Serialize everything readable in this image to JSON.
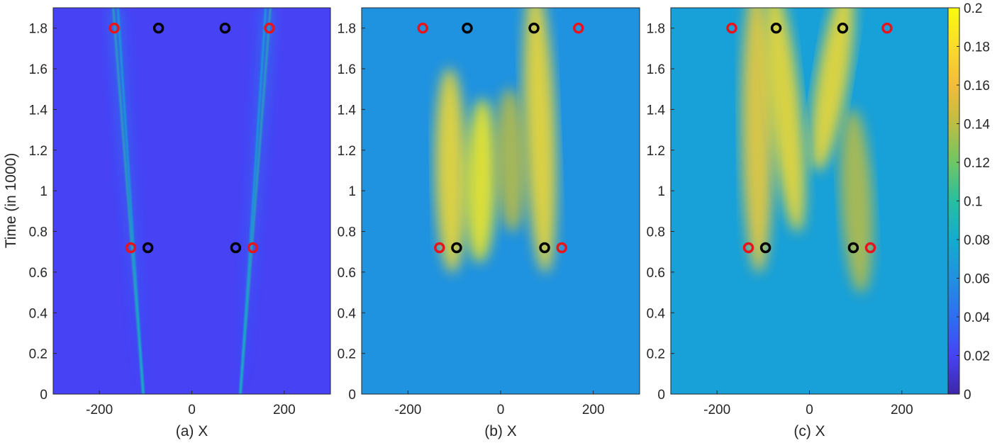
{
  "ylabel": "Time (in 1000)",
  "colorbar": {
    "range": [
      0,
      0.2
    ],
    "ticks": [
      "0",
      "0.02",
      "0.04",
      "0.06",
      "0.08",
      "0.1",
      "0.12",
      "0.14",
      "0.16",
      "0.18",
      "0.2"
    ],
    "colormap": "parula",
    "stops": [
      "#3e26a8",
      "#4743f5",
      "#2d6ff1",
      "#1f92e0",
      "#11adcf",
      "#25c0a0",
      "#6fc665",
      "#bdbd42",
      "#f4bc3a",
      "#fadb2a",
      "#f9fb0e"
    ]
  },
  "chart_data": [
    {
      "type": "heatmap",
      "panel": "a",
      "xlabel": "(a) X",
      "ylabel": "Time (in 1000)",
      "xlim": [
        -300,
        300
      ],
      "ylim": [
        0,
        1.9
      ],
      "xticks": [
        "-200",
        "0",
        "200"
      ],
      "yticks": [
        "0",
        "0.2",
        "0.4",
        "0.6",
        "0.8",
        "1",
        "1.2",
        "1.4",
        "1.6",
        "1.8"
      ],
      "background_value": 0.02,
      "features": [
        {
          "kind": "beam",
          "from": [
            -105,
            0
          ],
          "to": [
            -170,
            1.9
          ],
          "value": 0.1
        },
        {
          "kind": "beam",
          "from": [
            -105,
            0
          ],
          "to": [
            -160,
            1.9
          ],
          "value": 0.08
        },
        {
          "kind": "beam",
          "from": [
            105,
            0
          ],
          "to": [
            170,
            1.9
          ],
          "value": 0.1
        },
        {
          "kind": "beam",
          "from": [
            105,
            0
          ],
          "to": [
            160,
            1.9
          ],
          "value": 0.08
        }
      ],
      "markers": [
        {
          "x": -168,
          "y": 1.8,
          "color": "#e8141b"
        },
        {
          "x": -72,
          "y": 1.8,
          "color": "#000000"
        },
        {
          "x": 72,
          "y": 1.8,
          "color": "#000000"
        },
        {
          "x": 168,
          "y": 1.8,
          "color": "#e8141b"
        },
        {
          "x": -132,
          "y": 0.72,
          "color": "#e8141b"
        },
        {
          "x": -95,
          "y": 0.72,
          "color": "#000000"
        },
        {
          "x": 95,
          "y": 0.72,
          "color": "#000000"
        },
        {
          "x": 132,
          "y": 0.72,
          "color": "#e8141b"
        }
      ]
    },
    {
      "type": "heatmap",
      "panel": "b",
      "xlabel": "(b) X",
      "xlim": [
        -300,
        300
      ],
      "ylim": [
        0,
        1.9
      ],
      "xticks": [
        "-200",
        "0",
        "200"
      ],
      "background_value": 0.06,
      "features": [
        {
          "kind": "band",
          "center": [
            -105,
            0.7
          ],
          "to": [
            -110,
            1.5
          ],
          "value": 0.18
        },
        {
          "kind": "band",
          "center": [
            -45,
            0.75
          ],
          "to": [
            -40,
            1.35
          ],
          "value": 0.19
        },
        {
          "kind": "band",
          "center": [
            95,
            0.7
          ],
          "to": [
            75,
            1.9
          ],
          "value": 0.18
        },
        {
          "kind": "band",
          "center": [
            25,
            0.9
          ],
          "to": [
            20,
            1.4
          ],
          "value": 0.14
        }
      ],
      "markers": [
        {
          "x": -168,
          "y": 1.8,
          "color": "#e8141b"
        },
        {
          "x": -72,
          "y": 1.8,
          "color": "#000000"
        },
        {
          "x": 72,
          "y": 1.8,
          "color": "#000000"
        },
        {
          "x": 168,
          "y": 1.8,
          "color": "#e8141b"
        },
        {
          "x": -132,
          "y": 0.72,
          "color": "#e8141b"
        },
        {
          "x": -95,
          "y": 0.72,
          "color": "#000000"
        },
        {
          "x": 95,
          "y": 0.72,
          "color": "#000000"
        },
        {
          "x": 132,
          "y": 0.72,
          "color": "#e8141b"
        }
      ]
    },
    {
      "type": "heatmap",
      "panel": "c",
      "xlabel": "(c) X",
      "xlim": [
        -300,
        300
      ],
      "ylim": [
        0,
        1.9
      ],
      "xticks": [
        "-200",
        "0",
        "200"
      ],
      "background_value": 0.07,
      "features": [
        {
          "kind": "band",
          "center": [
            -110,
            0.7
          ],
          "to": [
            -115,
            1.9
          ],
          "value": 0.17
        },
        {
          "kind": "band",
          "center": [
            -30,
            0.9
          ],
          "to": [
            -75,
            1.9
          ],
          "value": 0.18
        },
        {
          "kind": "band",
          "center": [
            25,
            1.2
          ],
          "to": [
            75,
            1.9
          ],
          "value": 0.18
        },
        {
          "kind": "band",
          "center": [
            110,
            0.6
          ],
          "to": [
            95,
            1.3
          ],
          "value": 0.14
        }
      ],
      "markers": [
        {
          "x": -168,
          "y": 1.8,
          "color": "#e8141b"
        },
        {
          "x": -72,
          "y": 1.8,
          "color": "#000000"
        },
        {
          "x": 72,
          "y": 1.8,
          "color": "#000000"
        },
        {
          "x": 168,
          "y": 1.8,
          "color": "#e8141b"
        },
        {
          "x": -132,
          "y": 0.72,
          "color": "#e8141b"
        },
        {
          "x": -95,
          "y": 0.72,
          "color": "#000000"
        },
        {
          "x": 95,
          "y": 0.72,
          "color": "#000000"
        },
        {
          "x": 132,
          "y": 0.72,
          "color": "#e8141b"
        }
      ]
    }
  ]
}
